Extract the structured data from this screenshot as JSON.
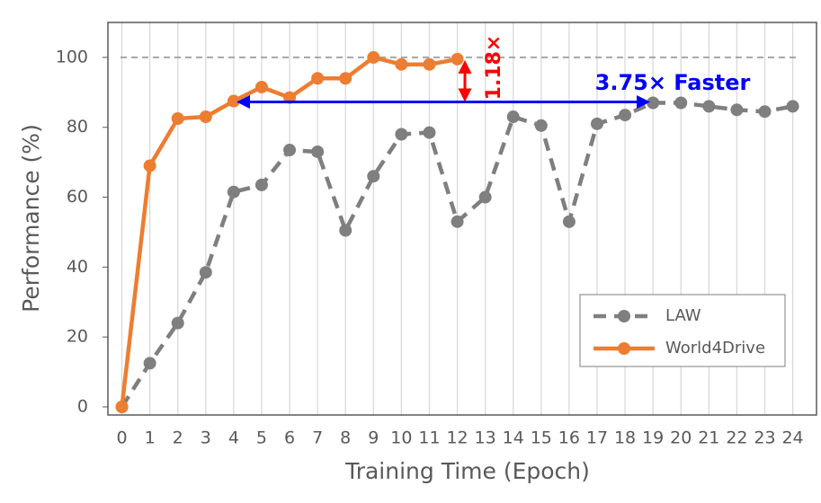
{
  "chart_data": {
    "type": "line",
    "x_label": "Training Time (Epoch)",
    "y_label": "Performance (%)",
    "x": [
      0,
      1,
      2,
      3,
      4,
      5,
      6,
      7,
      8,
      9,
      10,
      11,
      12,
      13,
      14,
      15,
      16,
      17,
      18,
      19,
      20,
      21,
      22,
      23,
      24
    ],
    "xticks": [
      0,
      1,
      2,
      3,
      4,
      5,
      6,
      7,
      8,
      9,
      10,
      11,
      12,
      13,
      14,
      15,
      16,
      17,
      18,
      19,
      20,
      21,
      22,
      23,
      24
    ],
    "xlim": [
      -0.5,
      24.85
    ],
    "ylim": [
      0,
      110
    ],
    "yticks": [
      0,
      20,
      40,
      60,
      80,
      100
    ],
    "grid": "x",
    "reference_line": 100,
    "legend": "lower right",
    "series": [
      {
        "name": "LAW",
        "color": "#7f7f7f",
        "dashed": true,
        "values": [
          0,
          12.5,
          24,
          38.5,
          61.5,
          63.5,
          73.5,
          73,
          50.5,
          66,
          78,
          78.5,
          53,
          60,
          83,
          80.5,
          53,
          81,
          83.5,
          87,
          87,
          86,
          85,
          84.5,
          86
        ]
      },
      {
        "name": "World4Drive",
        "color": "#ed7d31",
        "dashed": false,
        "values": [
          0,
          69,
          82.5,
          83,
          87.5,
          91.5,
          88.5,
          94,
          94,
          100,
          98,
          98,
          99.5,
          null,
          null,
          null,
          null,
          null,
          null,
          null,
          null,
          null,
          null,
          null,
          null
        ]
      }
    ],
    "annotations": [
      {
        "text": "1.18×",
        "color": "#ff0000"
      },
      {
        "text": "3.75× Faster",
        "color": "#0000ff"
      }
    ]
  }
}
